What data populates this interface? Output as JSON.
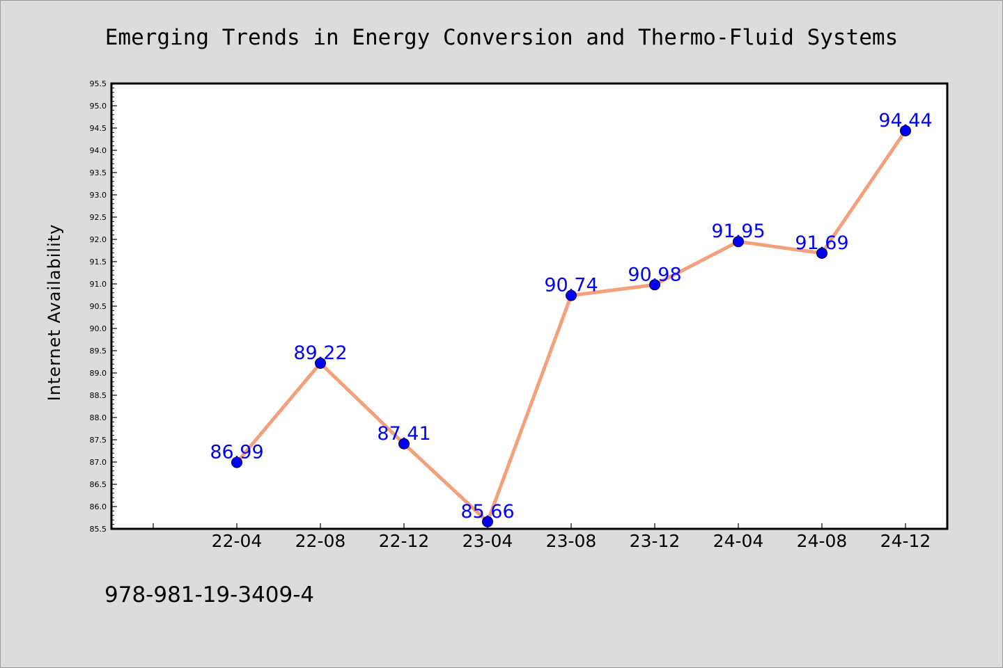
{
  "chart_data": {
    "type": "line",
    "title": "Emerging Trends in Energy Conversion and Thermo-Fluid Systems",
    "xlabel": "",
    "ylabel": "Internet Availability",
    "categories": [
      "22-04",
      "22-08",
      "22-12",
      "23-04",
      "23-08",
      "23-12",
      "24-04",
      "24-08",
      "24-12"
    ],
    "series": [
      {
        "values": [
          86.99,
          89.22,
          87.41,
          85.66,
          90.74,
          90.98,
          91.95,
          91.69,
          94.44
        ],
        "labels": [
          "86.99",
          "89.22",
          "87.41",
          "85.66",
          "90.74",
          "90.98",
          "91.95",
          "91.69",
          "94.44"
        ],
        "line_color": "#f4a07a",
        "marker_color": "#0000ff"
      }
    ],
    "ylim": [
      85.5,
      95.5
    ],
    "yticks": [
      "85.5",
      "86.0",
      "86.5",
      "87.0",
      "87.5",
      "88.0",
      "88.5",
      "89.0",
      "89.5",
      "90.0",
      "90.5",
      "91.0",
      "91.5",
      "92.0",
      "92.5",
      "93.0",
      "93.5",
      "94.0",
      "94.5",
      "95.0",
      "95.5"
    ],
    "grid": false,
    "legend": "none"
  },
  "footer": {
    "isbn": "978-981-19-3409-4"
  },
  "colors": {
    "background": "#dcdcdc",
    "plot_background": "#ffffff",
    "line": "#f4a07a",
    "marker": "#0000ff",
    "label": "#0000ff"
  }
}
